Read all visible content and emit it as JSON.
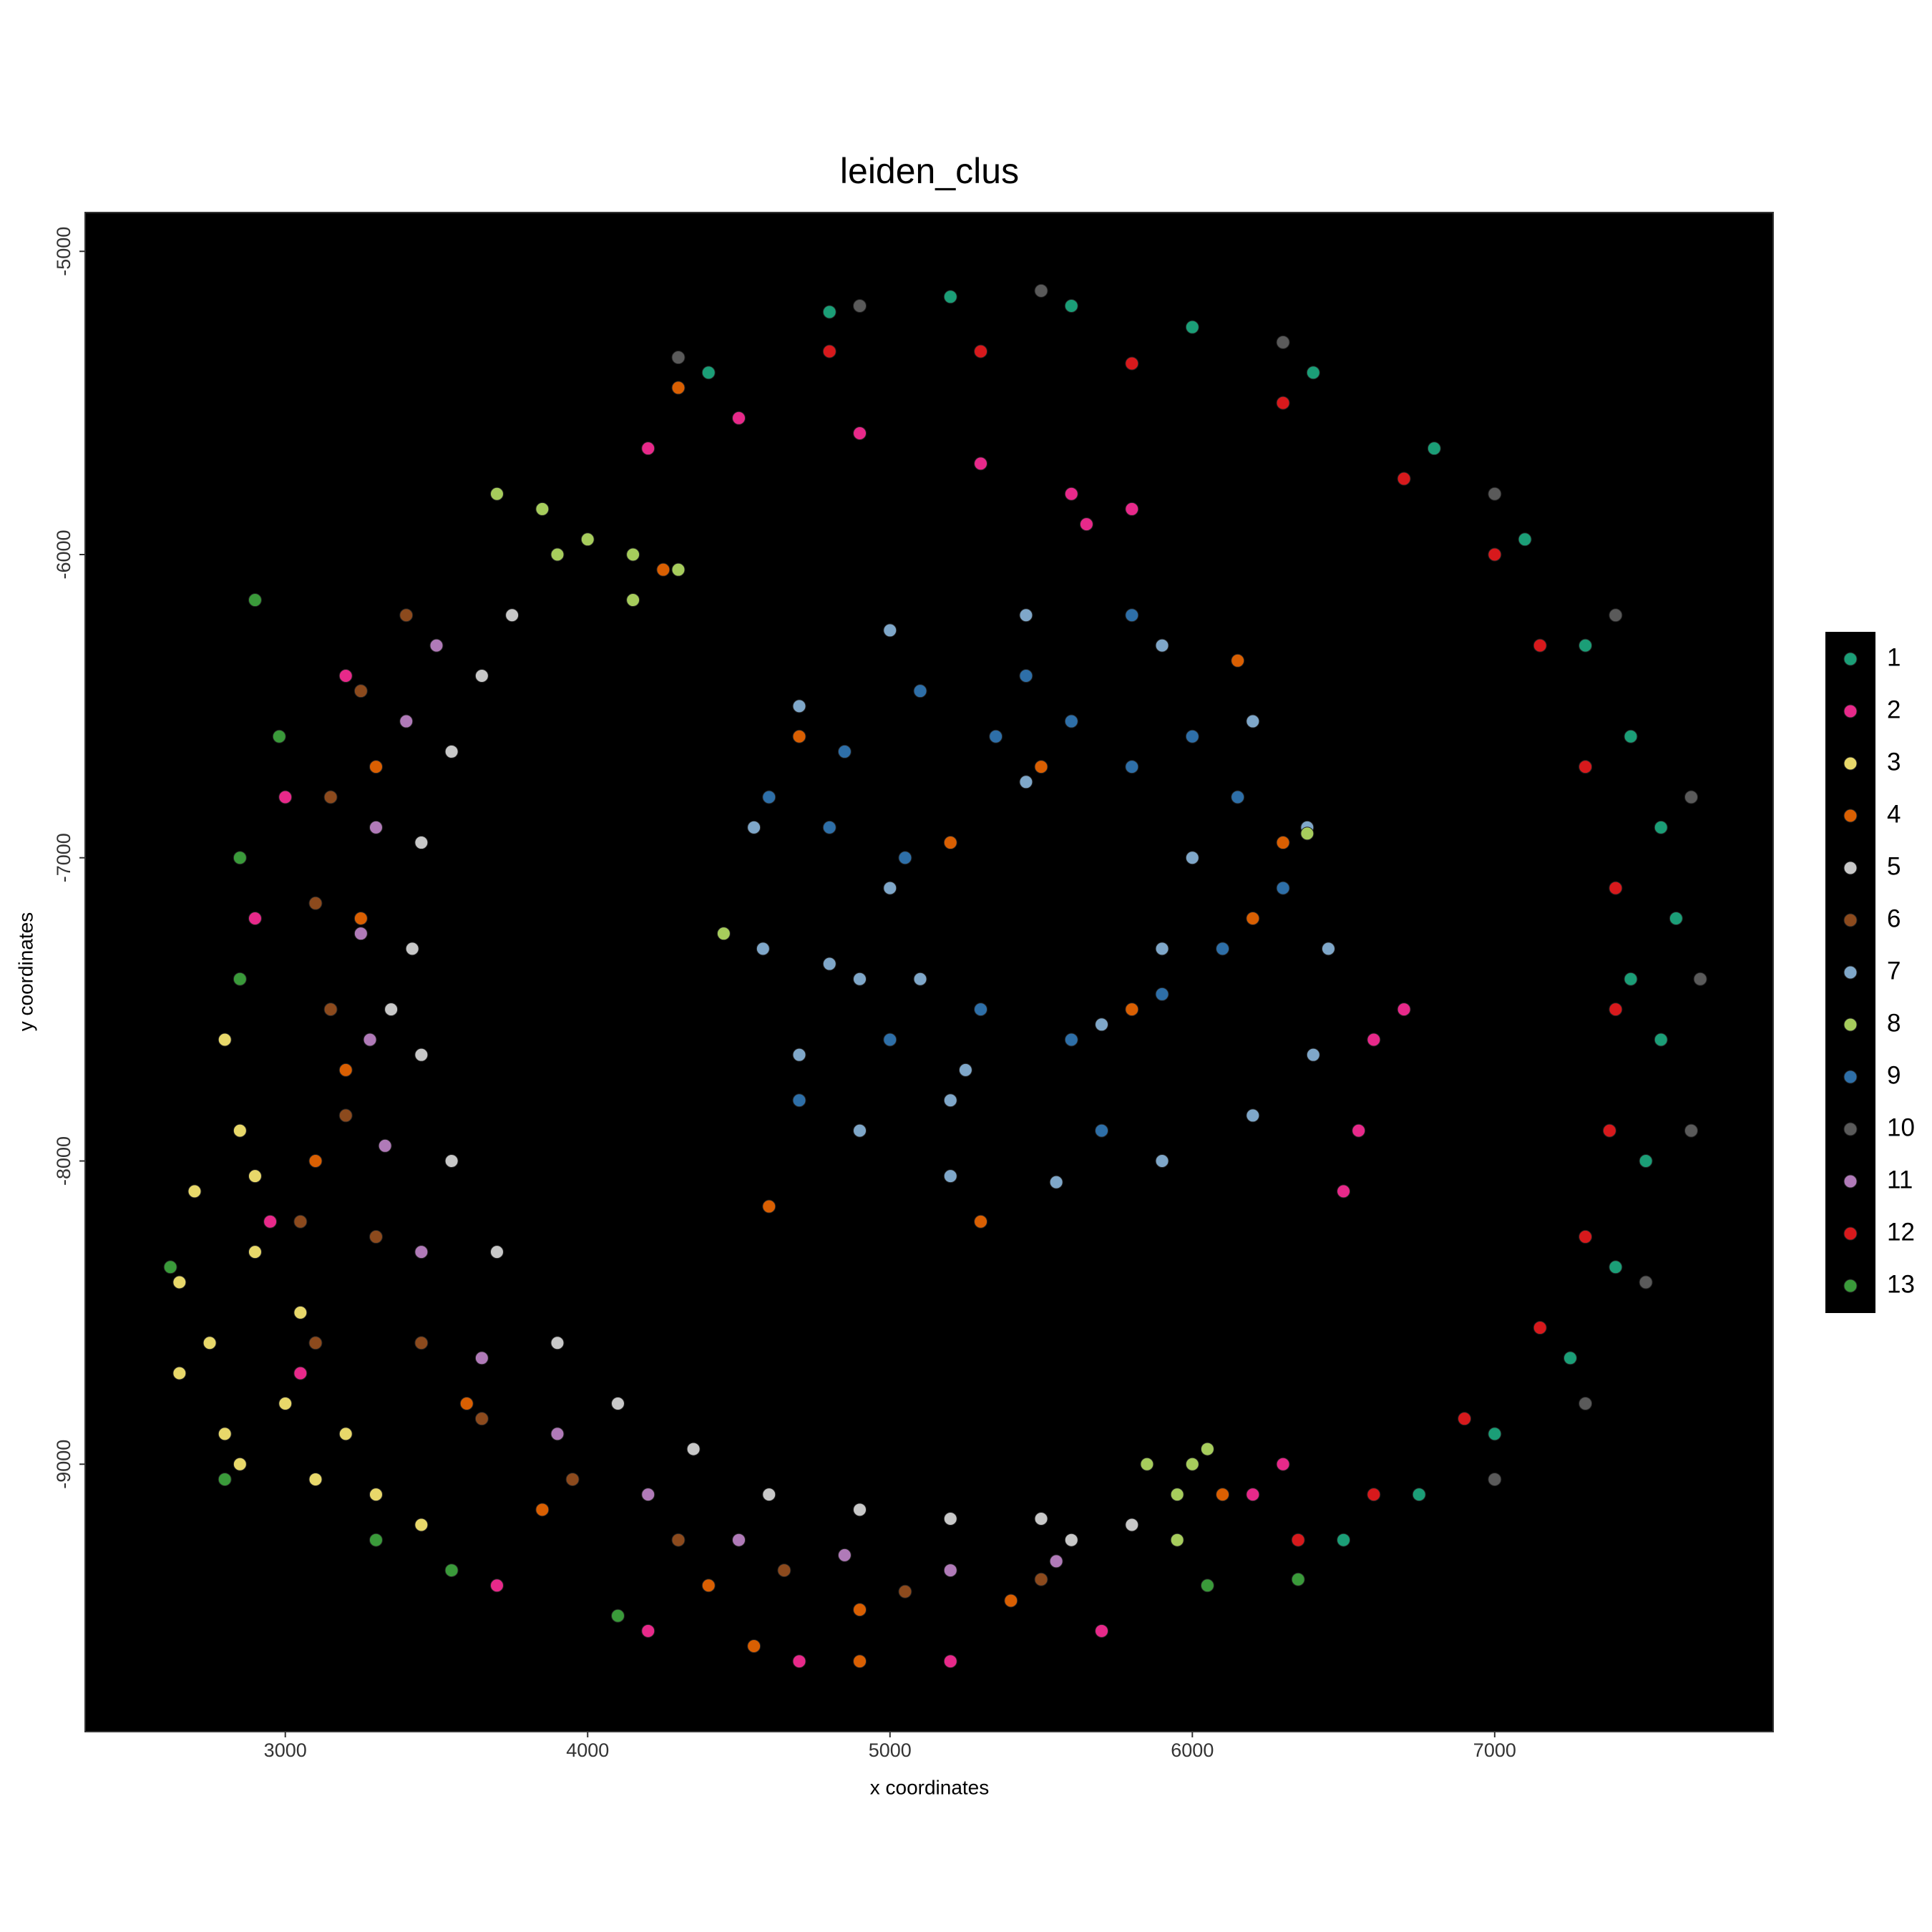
{
  "chart_data": {
    "type": "scatter",
    "title": "leiden_clus",
    "x_label": "x coordinates",
    "y_label": "y coordinates",
    "xlim": [
      2338,
      7921
    ],
    "ylim": [
      -9882,
      -4872
    ],
    "xticks": [
      3000,
      4000,
      5000,
      6000,
      7000
    ],
    "yticks": [
      -5000,
      -6000,
      -7000,
      -8000,
      -9000
    ],
    "grid": false,
    "background": "#000000",
    "legend_position": "right",
    "series": [
      {
        "name": "1",
        "color": "#1b9e77",
        "x": [
          4400,
          4800,
          5200,
          5600,
          6000,
          6400,
          6800,
          7100,
          7300,
          7450,
          7550,
          7600,
          7550,
          7500,
          7400,
          7250,
          7000,
          6750,
          6500,
          7300,
          7450
        ],
        "values": [
          -5400,
          -5200,
          -5150,
          -5180,
          -5250,
          -5400,
          -5650,
          -5950,
          -6300,
          -6600,
          -6900,
          -7200,
          -7600,
          -8000,
          -8350,
          -8650,
          -8900,
          -9100,
          -9250,
          -6700,
          -7400
        ]
      },
      {
        "name": "2",
        "color": "#e7298a",
        "x": [
          4200,
          4500,
          4900,
          5300,
          5600,
          5800,
          5650,
          3200,
          3000,
          2900,
          2950,
          3050,
          3300,
          3700,
          4200,
          4700,
          5200,
          5700,
          6300,
          6600,
          6550,
          6500,
          6700,
          6200
        ],
        "values": [
          -5650,
          -5550,
          -5600,
          -5700,
          -5800,
          -5850,
          -5900,
          -6400,
          -6800,
          -7200,
          -8200,
          -8700,
          -9100,
          -9400,
          -9550,
          -9650,
          -9650,
          -9550,
          -9000,
          -7600,
          -7900,
          -8100,
          -7500,
          -9100
        ]
      },
      {
        "name": "3",
        "color": "#e8d86a",
        "x": [
          2800,
          2850,
          2700,
          2650,
          2750,
          2900,
          2800,
          3000,
          3100,
          3300,
          3450,
          2650,
          3050,
          2900,
          2850,
          3200
        ],
        "values": [
          -7600,
          -7900,
          -8100,
          -8400,
          -8600,
          -8300,
          -8900,
          -8800,
          -9050,
          -9100,
          -9200,
          -8700,
          -8500,
          -8050,
          -9000,
          -8900
        ]
      },
      {
        "name": "4",
        "color": "#d95f02",
        "x": [
          3300,
          3250,
          3200,
          3100,
          3600,
          3850,
          4400,
          4900,
          5400,
          4900,
          4550,
          5500,
          5200,
          5800,
          6200,
          4700,
          6150,
          4250,
          4300,
          6100,
          5300,
          4600,
          6300
        ],
        "values": [
          -6700,
          -7200,
          -7700,
          -8000,
          -8800,
          -9150,
          -9400,
          -9480,
          -9450,
          -9650,
          -9600,
          -6700,
          -6950,
          -7500,
          -7200,
          -6600,
          -6350,
          -6050,
          -5450,
          -9100,
          -8200,
          -8150,
          -6950
        ]
      },
      {
        "name": "5",
        "color": "#c8c8c8",
        "x": [
          3750,
          3650,
          3550,
          3450,
          3420,
          3450,
          3550,
          3700,
          3900,
          4100,
          4350,
          4600,
          4900,
          5200,
          5500,
          5800,
          3350,
          5600
        ],
        "values": [
          -6200,
          -6400,
          -6650,
          -6950,
          -7300,
          -7650,
          -8000,
          -8300,
          -8600,
          -8800,
          -8950,
          -9100,
          -9150,
          -9180,
          -9180,
          -9200,
          -7500,
          -9250
        ]
      },
      {
        "name": "6",
        "color": "#8c4a1d",
        "x": [
          3400,
          3250,
          3150,
          3100,
          3150,
          3200,
          3300,
          3450,
          3650,
          3950,
          4300,
          4650,
          5050,
          5500,
          3050,
          3100
        ],
        "values": [
          -6200,
          -6450,
          -6800,
          -7150,
          -7500,
          -7850,
          -8250,
          -8600,
          -8850,
          -9050,
          -9250,
          -9350,
          -9420,
          -9380,
          -8200,
          -8600
        ]
      },
      {
        "name": "7",
        "color": "#7fa7c9",
        "x": [
          5450,
          5000,
          4700,
          4550,
          4580,
          4700,
          4900,
          5200,
          5550,
          5900,
          6200,
          6400,
          6450,
          6380,
          6200,
          5900,
          4800,
          4900,
          5250,
          5200,
          5000,
          5900,
          6000,
          5450,
          5100,
          5700
        ],
        "values": [
          -6200,
          -6250,
          -6500,
          -6900,
          -7300,
          -7650,
          -7900,
          -8050,
          -8070,
          -8000,
          -7850,
          -7650,
          -7300,
          -6900,
          -6550,
          -6300,
          -7350,
          -7400,
          -7700,
          -7800,
          -7100,
          -7300,
          -7000,
          -6750,
          -7400,
          -7550
        ]
      },
      {
        "name": "8",
        "color": "#a6cc5c",
        "x": [
          3700,
          3850,
          4000,
          4150,
          4300,
          4150,
          3900,
          5850,
          5950,
          6000,
          6050,
          5950,
          6380,
          4450
        ],
        "values": [
          -5800,
          -5850,
          -5950,
          -6000,
          -6050,
          -6150,
          -6000,
          -9000,
          -9100,
          -9000,
          -8950,
          -9250,
          -6920,
          -7250
        ]
      },
      {
        "name": "9",
        "color": "#2e6fa8",
        "x": [
          4850,
          5100,
          5350,
          5600,
          5800,
          5050,
          4800,
          5300,
          5600,
          5900,
          6150,
          6300,
          5450,
          4700,
          5000,
          5700,
          6000,
          6100,
          4600,
          5800
        ],
        "values": [
          -6650,
          -6450,
          -6600,
          -6550,
          -6700,
          -7000,
          -6900,
          -7500,
          -7600,
          -7450,
          -6800,
          -7100,
          -6400,
          -7800,
          -7600,
          -7900,
          -6600,
          -7300,
          -6800,
          -6200
        ]
      },
      {
        "name": "10",
        "color": "#5a5a5a",
        "x": [
          4900,
          5500,
          6300,
          7000,
          7400,
          7650,
          7680,
          7650,
          7500,
          7300,
          7000,
          4300
        ],
        "values": [
          -5180,
          -5130,
          -5300,
          -5800,
          -6200,
          -6800,
          -7400,
          -7900,
          -8400,
          -8800,
          -9050,
          -5350
        ]
      },
      {
        "name": "11",
        "color": "#b07ab8",
        "x": [
          3500,
          3400,
          3300,
          3250,
          3280,
          3330,
          3450,
          3650,
          3900,
          4200,
          4500,
          4850,
          5200,
          5550
        ],
        "values": [
          -6300,
          -6550,
          -6900,
          -7250,
          -7600,
          -7950,
          -8300,
          -8650,
          -8900,
          -9100,
          -9250,
          -9300,
          -9350,
          -9320
        ]
      },
      {
        "name": "12",
        "color": "#d7191c",
        "x": [
          4800,
          5300,
          5800,
          6300,
          6700,
          7000,
          7150,
          7300,
          7400,
          7400,
          7380,
          7300,
          7150,
          6900,
          6600,
          6350
        ],
        "values": [
          -5330,
          -5330,
          -5370,
          -5500,
          -5750,
          -6000,
          -6300,
          -6700,
          -7100,
          -7500,
          -7900,
          -8250,
          -8550,
          -8850,
          -9100,
          -9250
        ]
      },
      {
        "name": "13",
        "color": "#3a9a3a",
        "x": [
          2900,
          2850,
          2850,
          2620,
          2800,
          3300,
          3550,
          2980,
          4100,
          6050,
          6350
        ],
        "values": [
          -6150,
          -7000,
          -7400,
          -8350,
          -9050,
          -9250,
          -9350,
          -6600,
          -9500,
          -9400,
          -9380
        ]
      }
    ]
  }
}
